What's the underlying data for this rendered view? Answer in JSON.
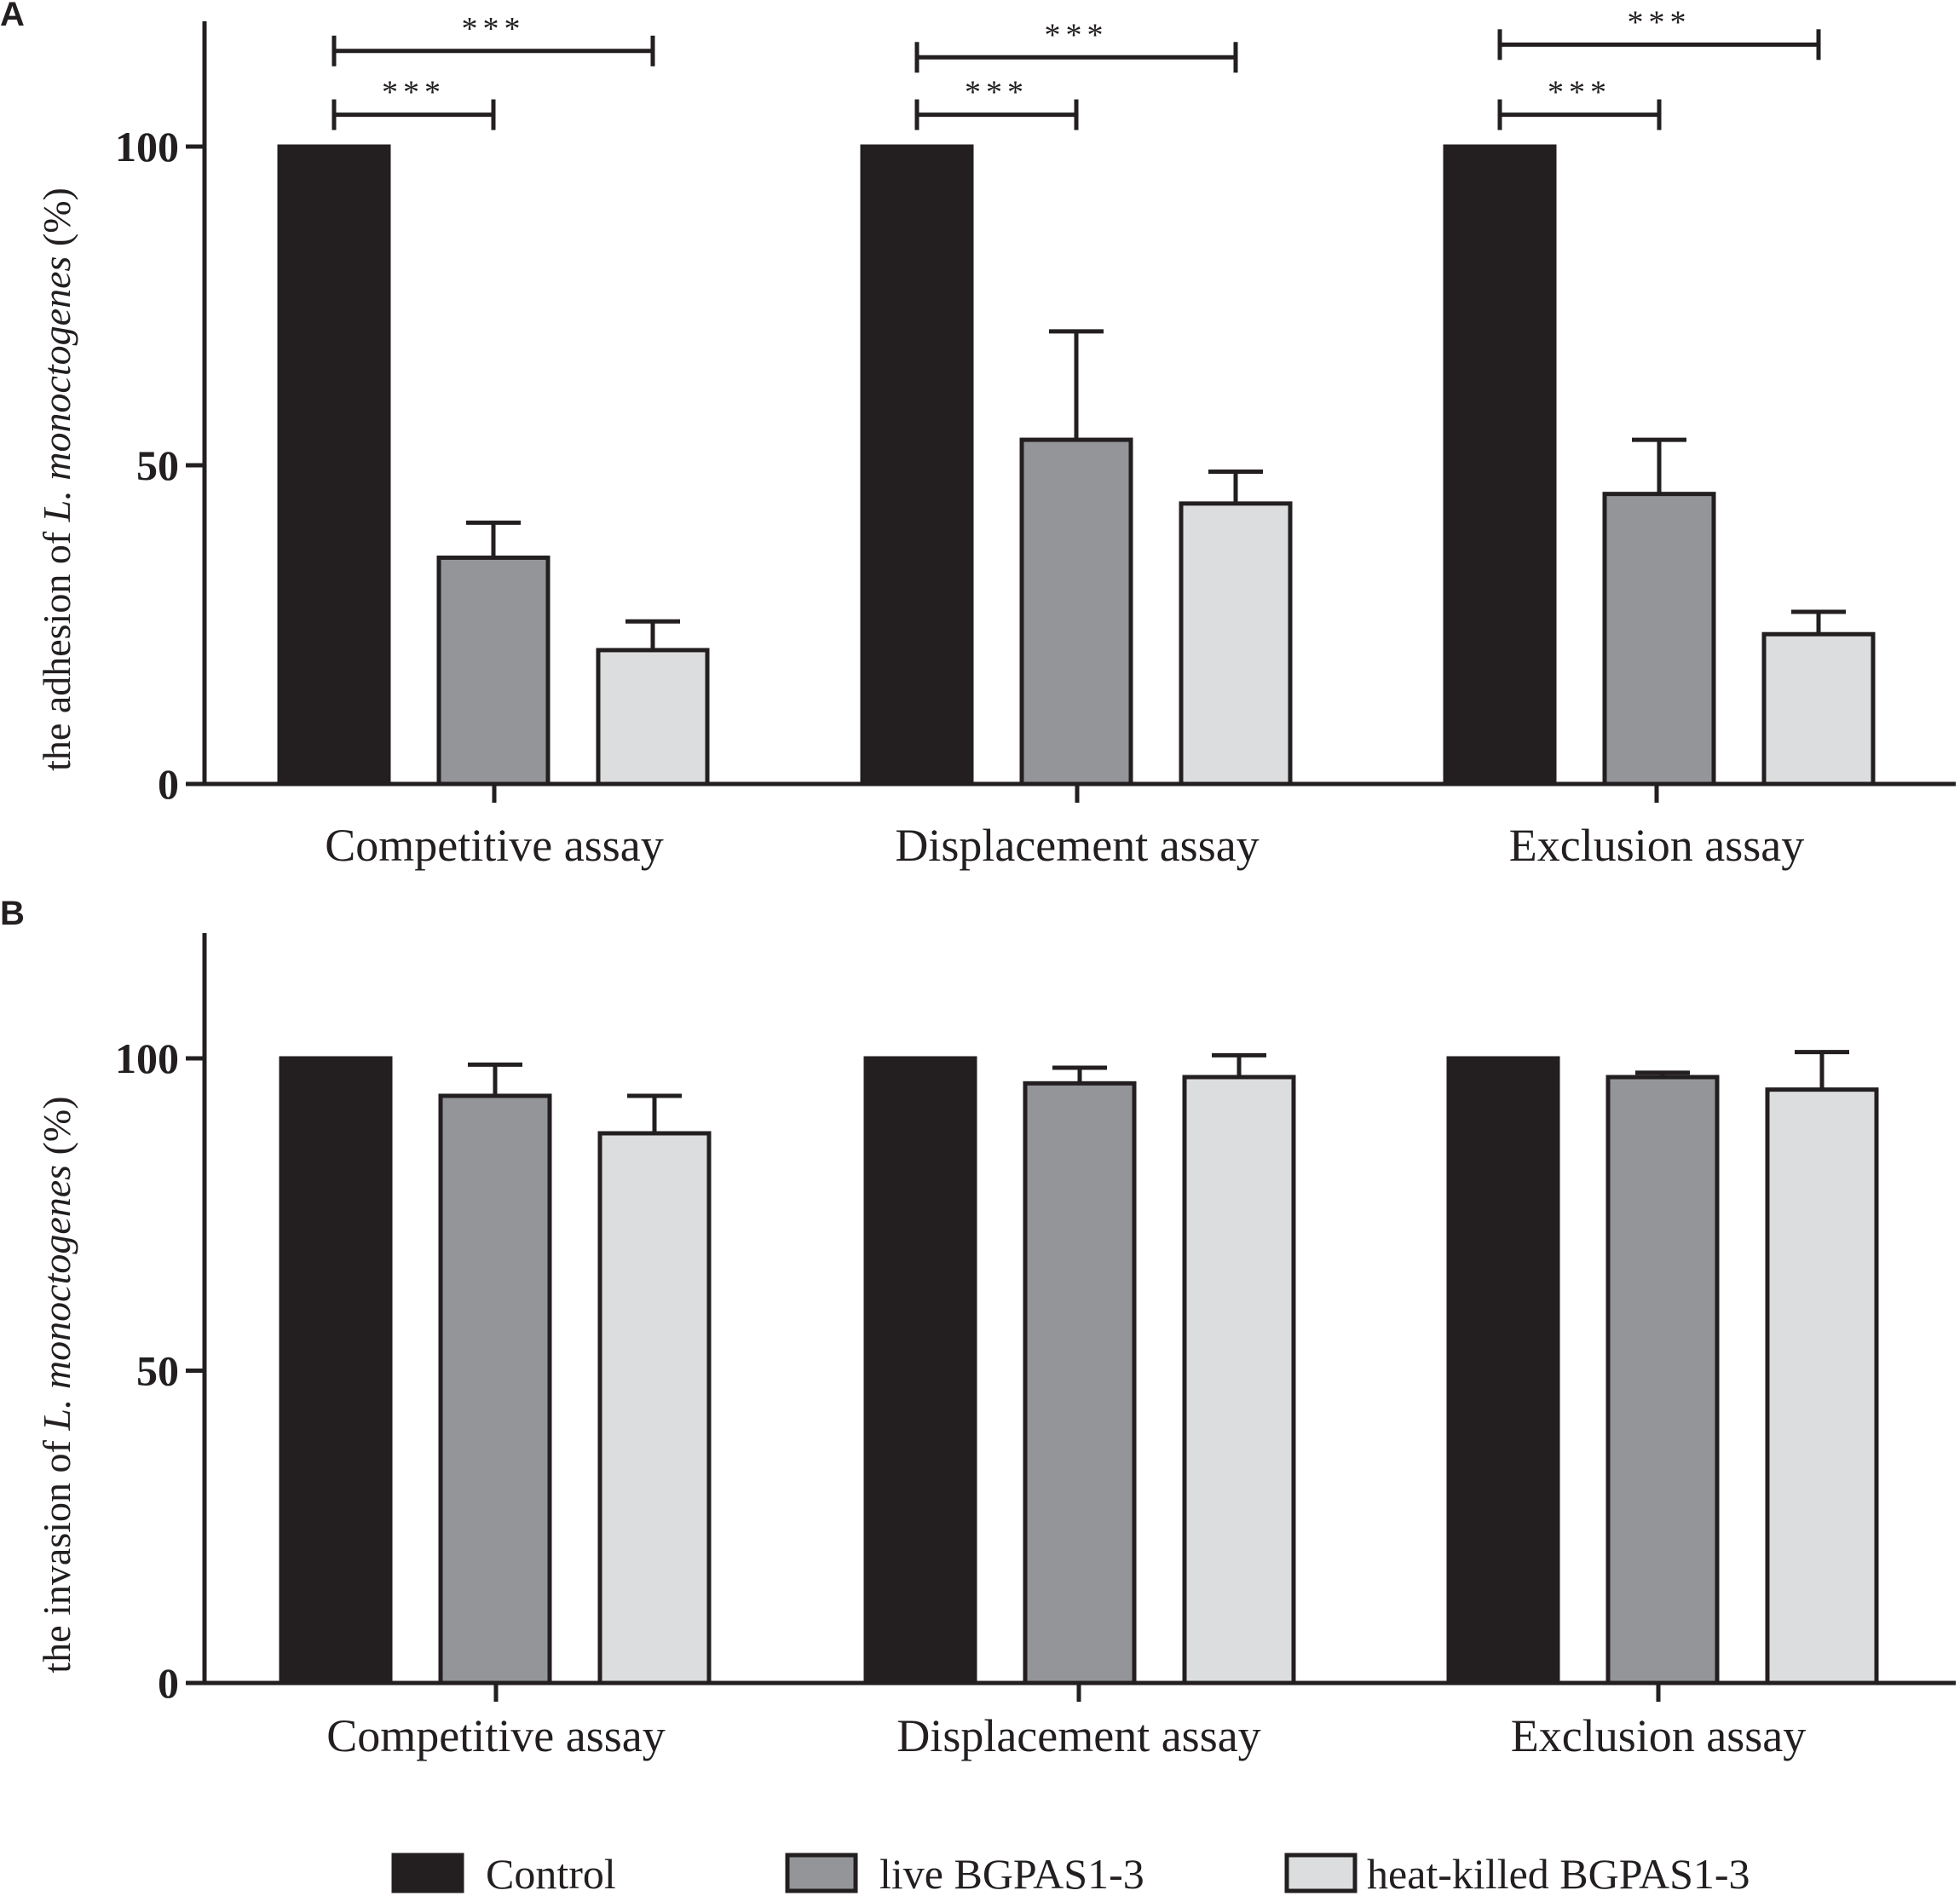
{
  "colors": {
    "Control": "#231f20",
    "live BGPAS1-3": "#939598",
    "heat-killed BGPAS1-3": "#dcddde",
    "axis": "#231f20"
  },
  "legend": {
    "items": [
      "Control",
      "live BGPAS1-3",
      "heat-killed BGPAS1-3"
    ]
  },
  "chart_data": [
    {
      "type": "bar",
      "panel": "A",
      "ylabel_prefix": "the adhesion of ",
      "ylabel_italic": "L. monoctogenes",
      "ylabel_suffix": " (%)",
      "ylim": [
        0,
        120
      ],
      "yticks": [
        0,
        50,
        100
      ],
      "categories": [
        "Competitive assay",
        "Displacement assay",
        "Exclusion assay"
      ],
      "series": [
        {
          "name": "Control",
          "values": [
            100,
            100,
            100
          ],
          "errors": [
            0,
            0,
            0
          ]
        },
        {
          "name": "live BGPAS1-3",
          "values": [
            35.5,
            54,
            45.5
          ],
          "errors": [
            5.5,
            17,
            8.5
          ]
        },
        {
          "name": "heat-killed BGPAS1-3",
          "values": [
            21,
            44,
            23.5
          ],
          "errors": [
            4.5,
            5,
            3.5
          ]
        }
      ],
      "significance": [
        {
          "category": 0,
          "from": 0,
          "to": 1,
          "label": "***",
          "level": 105
        },
        {
          "category": 0,
          "from": 0,
          "to": 2,
          "label": "***",
          "level": 115
        },
        {
          "category": 1,
          "from": 0,
          "to": 1,
          "label": "***",
          "level": 105
        },
        {
          "category": 1,
          "from": 0,
          "to": 2,
          "label": "***",
          "level": 114
        },
        {
          "category": 2,
          "from": 0,
          "to": 1,
          "label": "***",
          "level": 105
        },
        {
          "category": 2,
          "from": 0,
          "to": 2,
          "label": "***",
          "level": 116
        }
      ]
    },
    {
      "type": "bar",
      "panel": "B",
      "ylabel_prefix": "the invasion of ",
      "ylabel_italic": "L. monoctogenes",
      "ylabel_suffix": " (%)",
      "ylim": [
        0,
        120
      ],
      "yticks": [
        0,
        50,
        100
      ],
      "categories": [
        "Competitive assay",
        "Displacement assay",
        "Exclusion assay"
      ],
      "series": [
        {
          "name": "Control",
          "values": [
            100,
            100,
            100
          ],
          "errors": [
            0,
            0,
            0
          ]
        },
        {
          "name": "live BGPAS1-3",
          "values": [
            94,
            96,
            97
          ],
          "errors": [
            5,
            2.5,
            0.7
          ]
        },
        {
          "name": "heat-killed BGPAS1-3",
          "values": [
            88,
            97,
            95
          ],
          "errors": [
            6,
            3.5,
            6
          ]
        }
      ],
      "significance": []
    }
  ]
}
